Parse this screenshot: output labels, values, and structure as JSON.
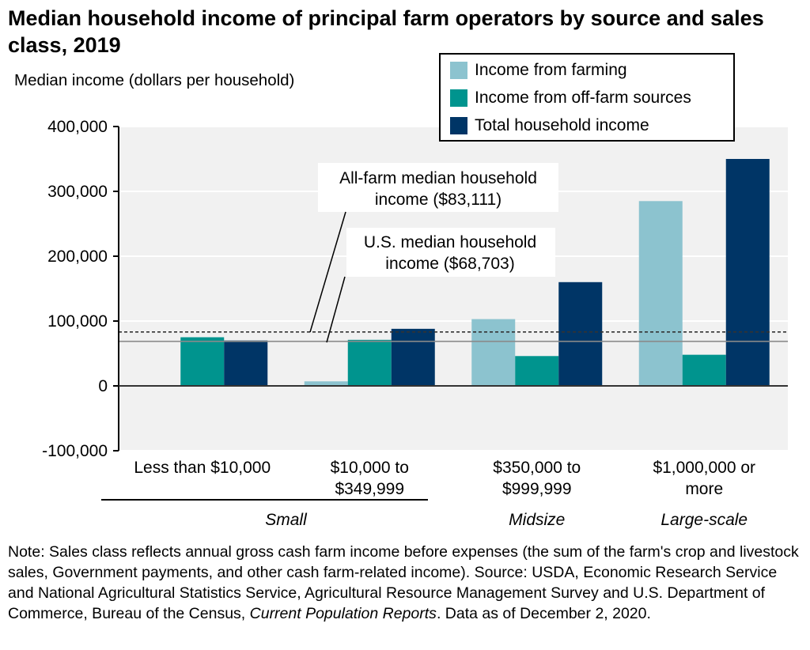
{
  "title": "Median household income of principal farm operators by source and sales class, 2019",
  "colors": {
    "farming": "#8cc3cf",
    "off_farm": "#00948e",
    "total": "#003566",
    "plot_bg": "#f1f1f1"
  },
  "legend": {
    "farming": "Income from farming",
    "off_farm": "Income from off-farm sources",
    "total": "Total household income"
  },
  "annotations": {
    "all_farm_line1": "All-farm median household",
    "all_farm_line2": "income ($83,111)",
    "us_line1": "U.S. median household",
    "us_line2": "income ($68,703)"
  },
  "note": {
    "text1": "Note: Sales class reflects annual gross cash farm income before expenses (the sum of the farm's crop and livestock sales, Government payments, and other cash farm-related income). Source: USDA, Economic Research Service and National Agricultural Statistics Service, Agricultural Resource Management Survey and U.S. Department of Commerce, Bureau of the Census, ",
    "publication": "Current Population Reports",
    "text2": ". Data as of December 2, 2020."
  },
  "chart_data": {
    "type": "bar",
    "title": "Median household income of principal farm operators by source and sales class, 2019",
    "ylabel": "Median income (dollars per household)",
    "ylim": [
      -100000,
      400000
    ],
    "yticks": [
      -100000,
      0,
      100000,
      200000,
      300000,
      400000
    ],
    "ytick_labels": [
      "-100,000",
      "0",
      "100,000",
      "200,000",
      "300,000",
      "400,000"
    ],
    "grid": true,
    "legend_position": "top-right",
    "categories": [
      [
        "Less than $10,000"
      ],
      [
        "$10,000 to",
        "$349,999"
      ],
      [
        "$350,000 to",
        "$999,999"
      ],
      [
        "$1,000,000 or",
        "more"
      ]
    ],
    "groups": [
      {
        "label": "Small",
        "categories": [
          0,
          1
        ]
      },
      {
        "label": "Midsize",
        "categories": [
          2
        ]
      },
      {
        "label": "Large-scale",
        "categories": [
          3
        ]
      }
    ],
    "series": [
      {
        "name": "Income from farming",
        "color": "#8cc3cf",
        "values": [
          -1000,
          7000,
          103000,
          285000
        ]
      },
      {
        "name": "Income from off-farm sources",
        "color": "#00948e",
        "values": [
          75000,
          71000,
          46000,
          48000
        ]
      },
      {
        "name": "Total household income",
        "color": "#003566",
        "values": [
          70000,
          88000,
          160000,
          350000
        ]
      }
    ],
    "reference_lines": [
      {
        "label": "All-farm median household income ($83,111)",
        "value": 83111,
        "style": "dashed"
      },
      {
        "label": "U.S. median household income ($68,703)",
        "value": 68703,
        "style": "solid"
      }
    ]
  }
}
